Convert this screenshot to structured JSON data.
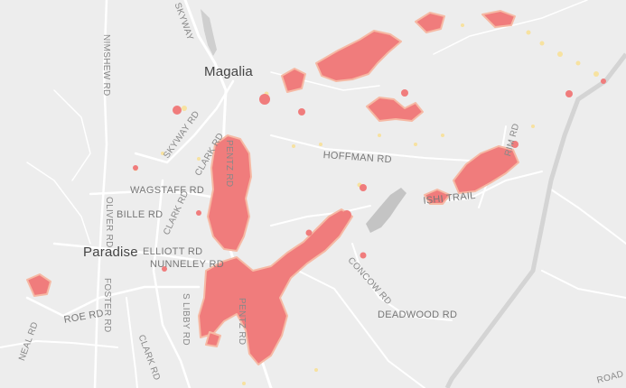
{
  "colors": {
    "background": "#ededed",
    "road": "#ffffff",
    "road_major": "#d4d4d4",
    "water": "#c4c4c4",
    "burn_fill": "#f07c7c",
    "burn_edge": "#f6b9a4",
    "ember": "#f7e2a0"
  },
  "cities": {
    "magalia": "Magalia",
    "paradise": "Paradise"
  },
  "roads": {
    "skyway_top": "SKYWAY",
    "nimshew": "NIMSHEW RD",
    "skyway": "SKYWAY RD",
    "clark_n": "CLARK RD",
    "pentz_n": "PENTZ RD",
    "wagstaff": "WAGSTAFF RD",
    "oliver": "OLIVER RD",
    "bille": "BILLE RD",
    "clark_c": "CLARK RD",
    "elliott": "ELLIOTT RD",
    "nunneley": "NUNNELEY RD",
    "hoffman": "HOFFMAN RD",
    "rim": "RIM RD",
    "ish_trail": "ISHI TRAIL",
    "concow": "CONCOW RD",
    "deadwood": "DEADWOOD RD",
    "roe": "ROE RD",
    "foster": "FOSTER RD",
    "libby": "S LIBBY RD",
    "pentz_s": "PENTZ RD",
    "clark_s": "CLARK RD",
    "neal": "NEAL RD",
    "edge_road": "ROAD"
  }
}
